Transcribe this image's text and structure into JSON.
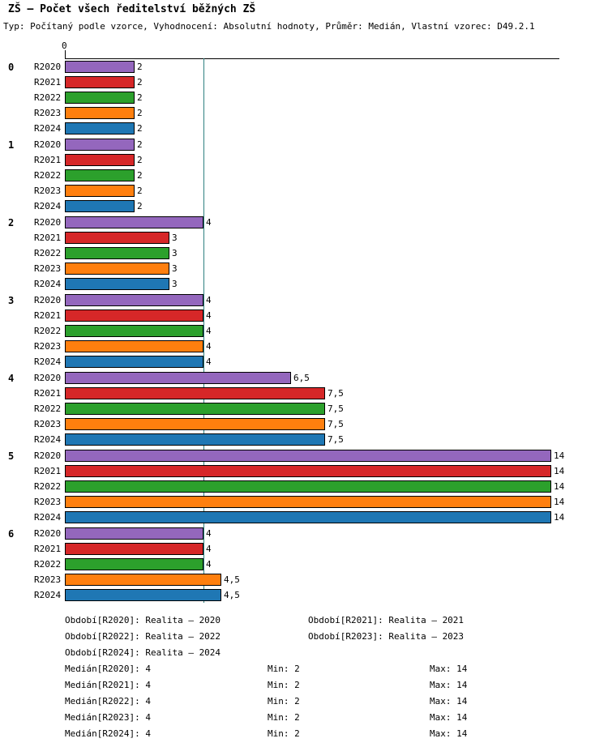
{
  "title": "ZŠ – Počet všech ředitelství běžných ZŠ",
  "subtitle": "Typ: Počítaný podle vzorce, Vyhodnocení: Absolutní hodnoty, Průměr: Medián, Vlastní vzorec: D49.2.1",
  "chart_data": {
    "type": "bar",
    "orientation": "horizontal",
    "title": "ZŠ – Počet všech ředitelství běžných ZŠ",
    "categories": [
      "0",
      "1",
      "2",
      "3",
      "4",
      "5",
      "6"
    ],
    "series": [
      {
        "name": "R2020",
        "color": "#9467bd",
        "values": [
          2,
          2,
          4,
          4,
          6.5,
          14,
          4
        ],
        "value_labels": [
          "2",
          "2",
          "4",
          "4",
          "6,5",
          "14",
          "4"
        ]
      },
      {
        "name": "R2021",
        "color": "#d62728",
        "values": [
          2,
          2,
          3,
          4,
          7.5,
          14,
          4
        ],
        "value_labels": [
          "2",
          "2",
          "3",
          "4",
          "7,5",
          "14",
          "4"
        ]
      },
      {
        "name": "R2022",
        "color": "#2ca02c",
        "values": [
          2,
          2,
          3,
          4,
          7.5,
          14,
          4
        ],
        "value_labels": [
          "2",
          "2",
          "3",
          "4",
          "7,5",
          "14",
          "4"
        ]
      },
      {
        "name": "R2023",
        "color": "#ff7f0e",
        "values": [
          2,
          2,
          3,
          4,
          7.5,
          14,
          4.5
        ],
        "value_labels": [
          "2",
          "2",
          "3",
          "4",
          "7,5",
          "14",
          "4,5"
        ]
      },
      {
        "name": "R2024",
        "color": "#1f77b4",
        "values": [
          2,
          2,
          3,
          4,
          7.5,
          14,
          4.5
        ],
        "value_labels": [
          "2",
          "2",
          "3",
          "4",
          "7,5",
          "14",
          "4,5"
        ]
      }
    ],
    "xlim": [
      0,
      14
    ],
    "x_origin_label": "0",
    "median_line_value": 4,
    "median_line_color": "#2e8080",
    "axis_color": "#000000",
    "bar_border_color": "#000000",
    "grid": false,
    "legend_position": "none"
  },
  "footer": {
    "period_rows": [
      {
        "left": "Období[R2020]: Realita – 2020",
        "right": "Období[R2021]: Realita – 2021"
      },
      {
        "left": "Období[R2022]: Realita – 2022",
        "right": "Období[R2023]: Realita – 2023"
      },
      {
        "left": "Období[R2024]: Realita – 2024",
        "right": ""
      }
    ],
    "stat_rows": [
      {
        "median": "Medián[R2020]: 4",
        "min": "Min: 2",
        "max": "Max: 14"
      },
      {
        "median": "Medián[R2021]: 4",
        "min": "Min: 2",
        "max": "Max: 14"
      },
      {
        "median": "Medián[R2022]: 4",
        "min": "Min: 2",
        "max": "Max: 14"
      },
      {
        "median": "Medián[R2023]: 4",
        "min": "Min: 2",
        "max": "Max: 14"
      },
      {
        "median": "Medián[R2024]: 4",
        "min": "Min: 2",
        "max": "Max: 14"
      }
    ]
  }
}
